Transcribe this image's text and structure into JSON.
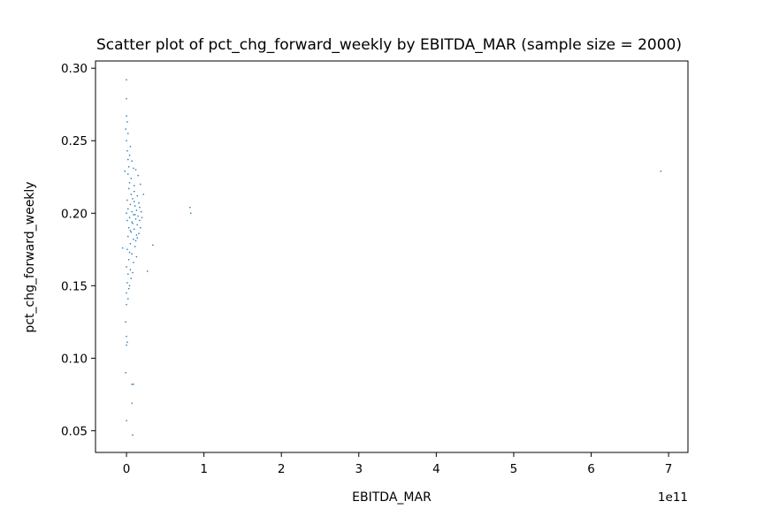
{
  "chart_data": {
    "type": "scatter",
    "title": "Scatter plot of pct_chg_forward_weekly by EBITDA_MAR (sample size = 2000)",
    "xlabel": "EBITDA_MAR",
    "ylabel": "pct_chg_forward_weekly",
    "x_offset_label": "1e11",
    "xlim": [
      -0.4,
      7.25
    ],
    "ylim": [
      0.035,
      0.305
    ],
    "x_ticks": [
      0,
      1,
      2,
      3,
      4,
      5,
      6,
      7
    ],
    "y_ticks": [
      0.05,
      0.1,
      0.15,
      0.2,
      0.25,
      0.3
    ],
    "x_tick_labels": [
      "0",
      "1",
      "2",
      "3",
      "4",
      "5",
      "6",
      "7"
    ],
    "y_tick_labels": [
      "0.05",
      "0.10",
      "0.15",
      "0.20",
      "0.25",
      "0.30"
    ],
    "marker_color": "#1f77b4",
    "grid": false,
    "x_units": "x 1e11",
    "points": [
      {
        "x": 0.0,
        "y": 0.292
      },
      {
        "x": 0.0,
        "y": 0.279
      },
      {
        "x": 0.0,
        "y": 0.267
      },
      {
        "x": 0.01,
        "y": 0.263
      },
      {
        "x": -0.01,
        "y": 0.258
      },
      {
        "x": 0.02,
        "y": 0.255
      },
      {
        "x": 0.0,
        "y": 0.25
      },
      {
        "x": 0.05,
        "y": 0.246
      },
      {
        "x": 0.07,
        "y": 0.236
      },
      {
        "x": 0.09,
        "y": 0.231
      },
      {
        "x": 0.12,
        "y": 0.23
      },
      {
        "x": 0.04,
        "y": 0.24
      },
      {
        "x": 0.02,
        "y": 0.237
      },
      {
        "x": -0.02,
        "y": 0.229
      },
      {
        "x": 0.15,
        "y": 0.226
      },
      {
        "x": 0.06,
        "y": 0.224
      },
      {
        "x": 0.18,
        "y": 0.22
      },
      {
        "x": 0.1,
        "y": 0.219
      },
      {
        "x": 0.03,
        "y": 0.217
      },
      {
        "x": 0.22,
        "y": 0.213
      },
      {
        "x": 0.14,
        "y": 0.212
      },
      {
        "x": 0.08,
        "y": 0.21
      },
      {
        "x": 0.01,
        "y": 0.209
      },
      {
        "x": 0.16,
        "y": 0.207
      },
      {
        "x": 0.05,
        "y": 0.206
      },
      {
        "x": 0.11,
        "y": 0.205
      },
      {
        "x": 0.02,
        "y": 0.203
      },
      {
        "x": 0.13,
        "y": 0.202
      },
      {
        "x": 0.07,
        "y": 0.201
      },
      {
        "x": 0.0,
        "y": 0.2
      },
      {
        "x": 0.09,
        "y": 0.199
      },
      {
        "x": 0.15,
        "y": 0.198
      },
      {
        "x": 0.04,
        "y": 0.197
      },
      {
        "x": 0.12,
        "y": 0.196
      },
      {
        "x": 0.01,
        "y": 0.195
      },
      {
        "x": 0.08,
        "y": 0.193
      },
      {
        "x": 0.14,
        "y": 0.192
      },
      {
        "x": 0.03,
        "y": 0.19
      },
      {
        "x": 0.1,
        "y": 0.189
      },
      {
        "x": 0.06,
        "y": 0.187
      },
      {
        "x": 0.13,
        "y": 0.185
      },
      {
        "x": 0.02,
        "y": 0.184
      },
      {
        "x": 0.09,
        "y": 0.182
      },
      {
        "x": -0.05,
        "y": 0.176
      },
      {
        "x": 0.05,
        "y": 0.179
      },
      {
        "x": 0.11,
        "y": 0.177
      },
      {
        "x": 0.34,
        "y": 0.178
      },
      {
        "x": 0.01,
        "y": 0.175
      },
      {
        "x": 0.07,
        "y": 0.172
      },
      {
        "x": 0.13,
        "y": 0.17
      },
      {
        "x": 0.03,
        "y": 0.168
      },
      {
        "x": 0.09,
        "y": 0.166
      },
      {
        "x": 0.0,
        "y": 0.163
      },
      {
        "x": 0.05,
        "y": 0.161
      },
      {
        "x": 0.27,
        "y": 0.16
      },
      {
        "x": 0.02,
        "y": 0.158
      },
      {
        "x": 0.06,
        "y": 0.155
      },
      {
        "x": 0.01,
        "y": 0.152
      },
      {
        "x": 0.03,
        "y": 0.148
      },
      {
        "x": 0.0,
        "y": 0.145
      },
      {
        "x": 0.02,
        "y": 0.141
      },
      {
        "x": 0.0,
        "y": 0.137
      },
      {
        "x": -0.01,
        "y": 0.125
      },
      {
        "x": 0.0,
        "y": 0.115
      },
      {
        "x": 0.01,
        "y": 0.111
      },
      {
        "x": 0.0,
        "y": 0.109
      },
      {
        "x": -0.01,
        "y": 0.09
      },
      {
        "x": 0.07,
        "y": 0.082
      },
      {
        "x": 0.09,
        "y": 0.082
      },
      {
        "x": 0.07,
        "y": 0.069
      },
      {
        "x": 0.0,
        "y": 0.057
      },
      {
        "x": 0.08,
        "y": 0.047
      },
      {
        "x": 0.82,
        "y": 0.204
      },
      {
        "x": 0.83,
        "y": 0.2
      },
      {
        "x": 6.9,
        "y": 0.229
      },
      {
        "x": 0.04,
        "y": 0.221
      },
      {
        "x": 0.1,
        "y": 0.215
      },
      {
        "x": 0.17,
        "y": 0.204
      },
      {
        "x": 0.19,
        "y": 0.201
      },
      {
        "x": 0.2,
        "y": 0.197
      },
      {
        "x": 0.18,
        "y": 0.19
      },
      {
        "x": 0.16,
        "y": 0.186
      },
      {
        "x": 0.12,
        "y": 0.181
      },
      {
        "x": 0.04,
        "y": 0.173
      },
      {
        "x": 0.08,
        "y": 0.159
      },
      {
        "x": 0.04,
        "y": 0.15
      },
      {
        "x": 0.1,
        "y": 0.208
      },
      {
        "x": 0.06,
        "y": 0.213
      },
      {
        "x": 0.14,
        "y": 0.183
      },
      {
        "x": 0.17,
        "y": 0.195
      },
      {
        "x": 0.02,
        "y": 0.227
      },
      {
        "x": 0.07,
        "y": 0.194
      },
      {
        "x": 0.05,
        "y": 0.188
      },
      {
        "x": 0.11,
        "y": 0.199
      },
      {
        "x": 0.03,
        "y": 0.232
      },
      {
        "x": 0.01,
        "y": 0.243
      }
    ]
  }
}
